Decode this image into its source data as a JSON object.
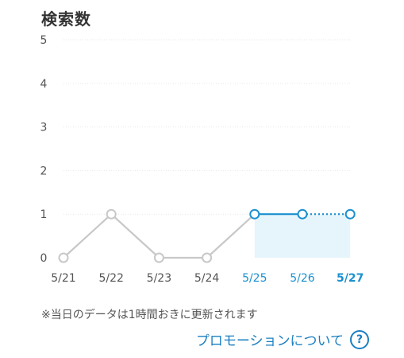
{
  "chart_data": {
    "type": "line",
    "title": "検索数",
    "categories": [
      "5/21",
      "5/22",
      "5/23",
      "5/24",
      "5/25",
      "5/26",
      "5/27"
    ],
    "values": [
      0,
      1,
      0,
      0,
      1,
      1,
      1
    ],
    "y_ticks": [
      "0",
      "1",
      "2",
      "3",
      "4",
      "5"
    ],
    "ylim": [
      0,
      5
    ],
    "highlight_range": [
      "5/25",
      "5/27"
    ],
    "grid": true,
    "colors": {
      "past": "#c8c8c8",
      "highlight": "#1a90d0",
      "highlight_fill": "#e6f5fc",
      "grid": "#e8e8e8",
      "tick_text": "#555555"
    }
  },
  "note": "※当日のデータは1時間おきに更新されます",
  "promo_link": {
    "label": "プロモーションについて",
    "icon": "?"
  }
}
